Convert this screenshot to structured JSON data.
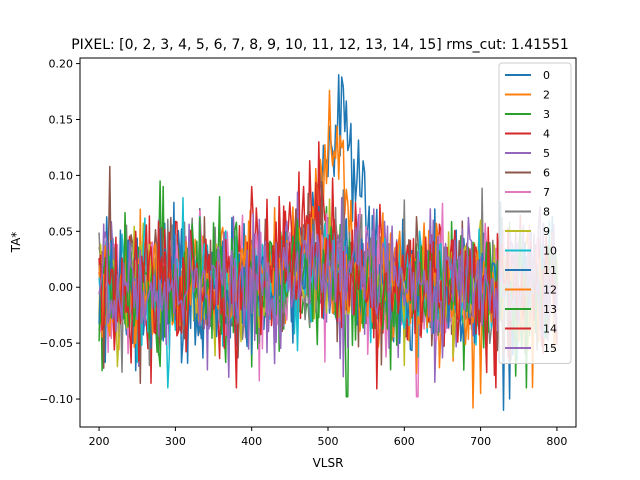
{
  "chart_data": {
    "type": "line",
    "title": "PIXEL: [0, 2, 3, 4, 5, 6, 7, 8, 9, 10, 11, 12, 13, 14, 15]   rms_cut: 1.41551",
    "xlabel": "VLSR",
    "ylabel": "TA*",
    "xlim": [
      175,
      825
    ],
    "ylim": [
      -0.125,
      0.205
    ],
    "xticks": [
      200,
      300,
      400,
      500,
      600,
      700,
      800
    ],
    "yticks": [
      -0.1,
      -0.05,
      0.0,
      0.05,
      0.1,
      0.15,
      0.2
    ],
    "ytick_labels": [
      "−0.10",
      "−0.05",
      "0.00",
      "0.05",
      "0.10",
      "0.15",
      "0.20"
    ],
    "grid": false,
    "legend_position": "top-right",
    "x_start": 200,
    "x_step": 2,
    "series": [
      {
        "name": "0",
        "color": "#1f77b4",
        "noise": 0.032,
        "line_peak": 0.145,
        "line_center": 515,
        "line_width": 38,
        "offset": 0.0,
        "spike_at": 518,
        "spike_value": 0.188,
        "dip_at": 730,
        "dip_value": -0.11
      },
      {
        "name": "2",
        "color": "#ff7f0e",
        "noise": 0.03,
        "line_peak": 0.12,
        "line_center": 505,
        "line_width": 30,
        "offset": 0.0,
        "spike_at": 502,
        "spike_value": 0.176,
        "dip_at": 690,
        "dip_value": -0.108
      },
      {
        "name": "3",
        "color": "#2ca02c",
        "noise": 0.033,
        "line_peak": 0.01,
        "line_center": 500,
        "line_width": 60,
        "offset": -0.004,
        "spike_at": 280,
        "spike_value": 0.095,
        "dip_at": 525,
        "dip_value": -0.098
      },
      {
        "name": "4",
        "color": "#d62728",
        "noise": 0.032,
        "line_peak": 0.06,
        "line_center": 480,
        "line_width": 55,
        "offset": 0.0,
        "spike_at": 488,
        "spike_value": 0.13,
        "dip_at": 720,
        "dip_value": -0.09
      },
      {
        "name": "5",
        "color": "#9467bd",
        "noise": 0.03,
        "line_peak": 0.03,
        "line_center": 470,
        "line_width": 60,
        "offset": 0.0,
        "spike_at": 460,
        "spike_value": 0.085,
        "dip_at": 640,
        "dip_value": -0.085
      },
      {
        "name": "6",
        "color": "#8c564b",
        "noise": 0.03,
        "line_peak": 0.02,
        "line_center": 500,
        "line_width": 60,
        "offset": 0.0,
        "spike_at": 214,
        "spike_value": 0.108,
        "dip_at": 254,
        "dip_value": -0.086
      },
      {
        "name": "7",
        "color": "#e377c2",
        "noise": 0.032,
        "line_peak": 0.015,
        "line_center": 500,
        "line_width": 60,
        "offset": 0.0,
        "spike_at": 650,
        "spike_value": 0.075,
        "dip_at": 617,
        "dip_value": -0.098
      },
      {
        "name": "8",
        "color": "#7f7f7f",
        "noise": 0.03,
        "line_peak": 0.015,
        "line_center": 500,
        "line_width": 60,
        "offset": 0.0,
        "spike_at": 600,
        "spike_value": 0.078,
        "dip_at": 230,
        "dip_value": -0.076
      },
      {
        "name": "9",
        "color": "#bcbd22",
        "noise": 0.028,
        "line_peak": 0.01,
        "line_center": 500,
        "line_width": 60,
        "offset": 0.0,
        "spike_at": 700,
        "spike_value": 0.06,
        "dip_at": 600,
        "dip_value": -0.07
      },
      {
        "name": "10",
        "color": "#17becf",
        "noise": 0.03,
        "line_peak": 0.01,
        "line_center": 500,
        "line_width": 60,
        "offset": 0.0,
        "spike_at": 310,
        "spike_value": 0.08,
        "dip_at": 290,
        "dip_value": -0.09
      },
      {
        "name": "11",
        "color": "#1f77b4",
        "noise": 0.03,
        "line_peak": 0.01,
        "line_center": 500,
        "line_width": 60,
        "offset": 0.0,
        "spike_at": 640,
        "spike_value": 0.07,
        "dip_at": 738,
        "dip_value": -0.1
      },
      {
        "name": "12",
        "color": "#ff7f0e",
        "noise": 0.03,
        "line_peak": 0.03,
        "line_center": 470,
        "line_width": 50,
        "offset": 0.0,
        "spike_at": 420,
        "spike_value": 0.07,
        "dip_at": 700,
        "dip_value": -0.095
      },
      {
        "name": "13",
        "color": "#2ca02c",
        "noise": 0.03,
        "line_peak": 0.01,
        "line_center": 500,
        "line_width": 60,
        "offset": 0.0,
        "spike_at": 760,
        "spike_value": 0.07,
        "dip_at": 760,
        "dip_value": -0.09
      },
      {
        "name": "14",
        "color": "#d62728",
        "noise": 0.032,
        "line_peak": 0.04,
        "line_center": 470,
        "line_width": 55,
        "offset": 0.0,
        "spike_at": 400,
        "spike_value": 0.09,
        "dip_at": 380,
        "dip_value": -0.09
      },
      {
        "name": "15",
        "color": "#9467bd",
        "noise": 0.03,
        "line_peak": 0.02,
        "line_center": 490,
        "line_width": 60,
        "offset": 0.0,
        "spike_at": 560,
        "spike_value": 0.07,
        "dip_at": 520,
        "dip_value": -0.08
      }
    ]
  }
}
